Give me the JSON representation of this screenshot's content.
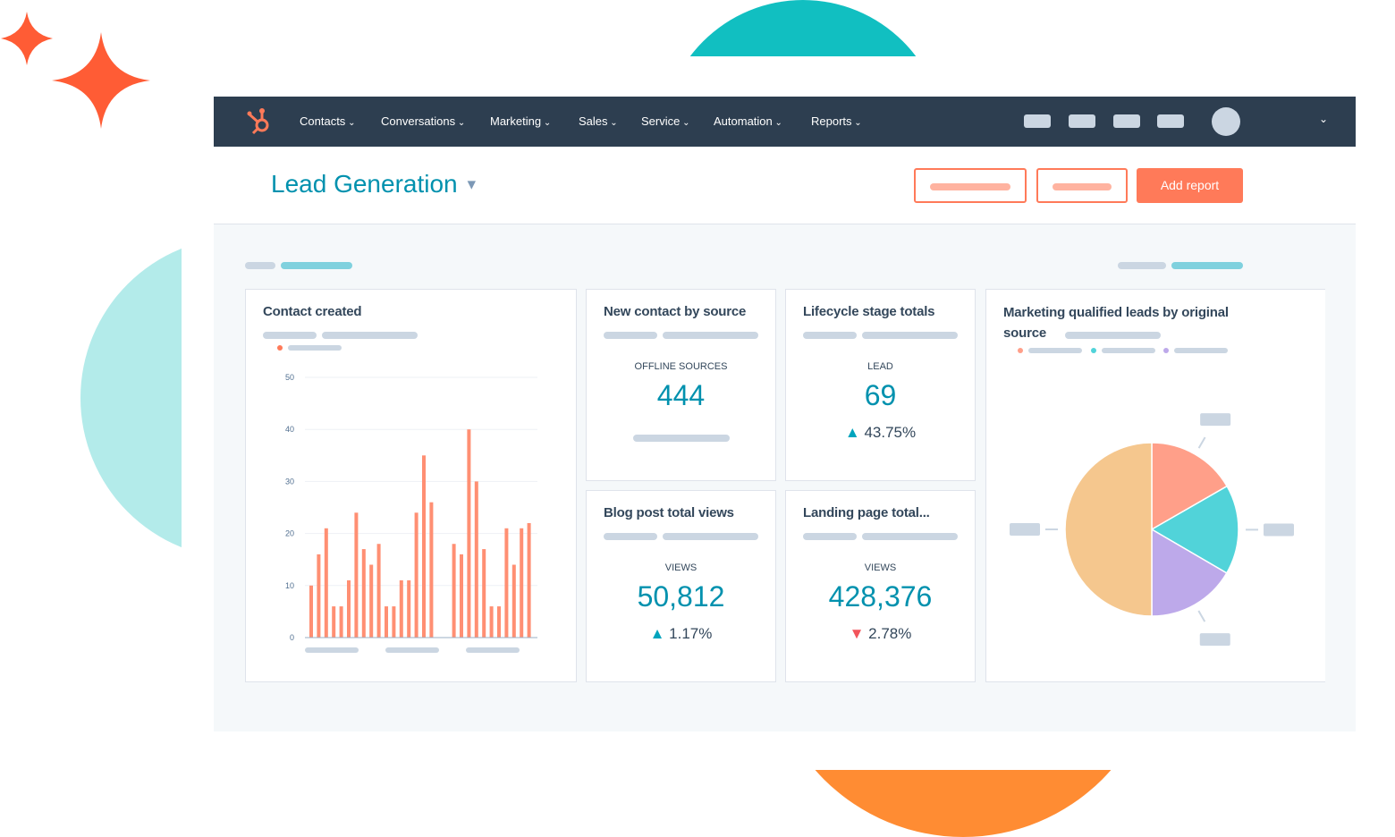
{
  "colors": {
    "accent": "#ff7a59",
    "nav": "#2d3e50",
    "teal": "#00a4bd"
  },
  "nav": {
    "logo": "hubspot-sprocket-icon",
    "items": [
      "Contacts",
      "Conversations",
      "Marketing",
      "Sales",
      "Service",
      "Automation",
      "Reports"
    ]
  },
  "header": {
    "title": "Lead Generation",
    "add_report": "Add report"
  },
  "cards": {
    "contact_created": {
      "title": "Contact created"
    },
    "new_contact": {
      "title": "New contact by source",
      "label": "OFFLINE SOURCES",
      "value": "444"
    },
    "lifecycle": {
      "title": "Lifecycle stage totals",
      "label": "LEAD",
      "value": "69",
      "change": "43.75%",
      "direction": "up"
    },
    "blog": {
      "title": "Blog post total views",
      "label": "VIEWS",
      "value": "50,812",
      "change": "1.17%",
      "direction": "up"
    },
    "landing": {
      "title": "Landing page total...",
      "label": "VIEWS",
      "value": "428,376",
      "change": "2.78%",
      "direction": "down"
    },
    "mql": {
      "title": "Marketing qualified leads by original source"
    }
  },
  "chart_data": [
    {
      "type": "bar",
      "title": "Contact created",
      "ylim": [
        0,
        50
      ],
      "yticks": [
        "0",
        "10",
        "20",
        "30",
        "40",
        "50"
      ],
      "grid": true,
      "color": "#ff8f73",
      "values": [
        10,
        16,
        21,
        6,
        6,
        11,
        24,
        17,
        14,
        18,
        6,
        6,
        11,
        11,
        24,
        35,
        26,
        null,
        null,
        18,
        16,
        40,
        30,
        17,
        6,
        6,
        21,
        14,
        21,
        22
      ]
    },
    {
      "type": "pie",
      "title": "Marketing qualified leads by original source",
      "values": [
        16.7,
        16.7,
        16.6,
        50
      ],
      "colors": [
        "#ff9f89",
        "#51d3d9",
        "#bda9ea",
        "#f5c78e"
      ]
    }
  ]
}
